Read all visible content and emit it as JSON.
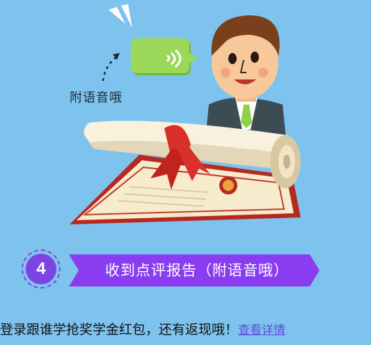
{
  "illustration": {
    "hint_label": "附语音哦"
  },
  "step": {
    "number": "4",
    "title": "收到点评报告（附语音哦）"
  },
  "footer": {
    "promo_text": "登录跟谁学抢奖学金红包，还有返现哦！",
    "link_text": "查看详情"
  },
  "colors": {
    "background": "#7ec3ee",
    "accent_purple": "#7d44e3",
    "bubble_green": "#8fd14a",
    "ribbon_red": "#d9302b"
  }
}
